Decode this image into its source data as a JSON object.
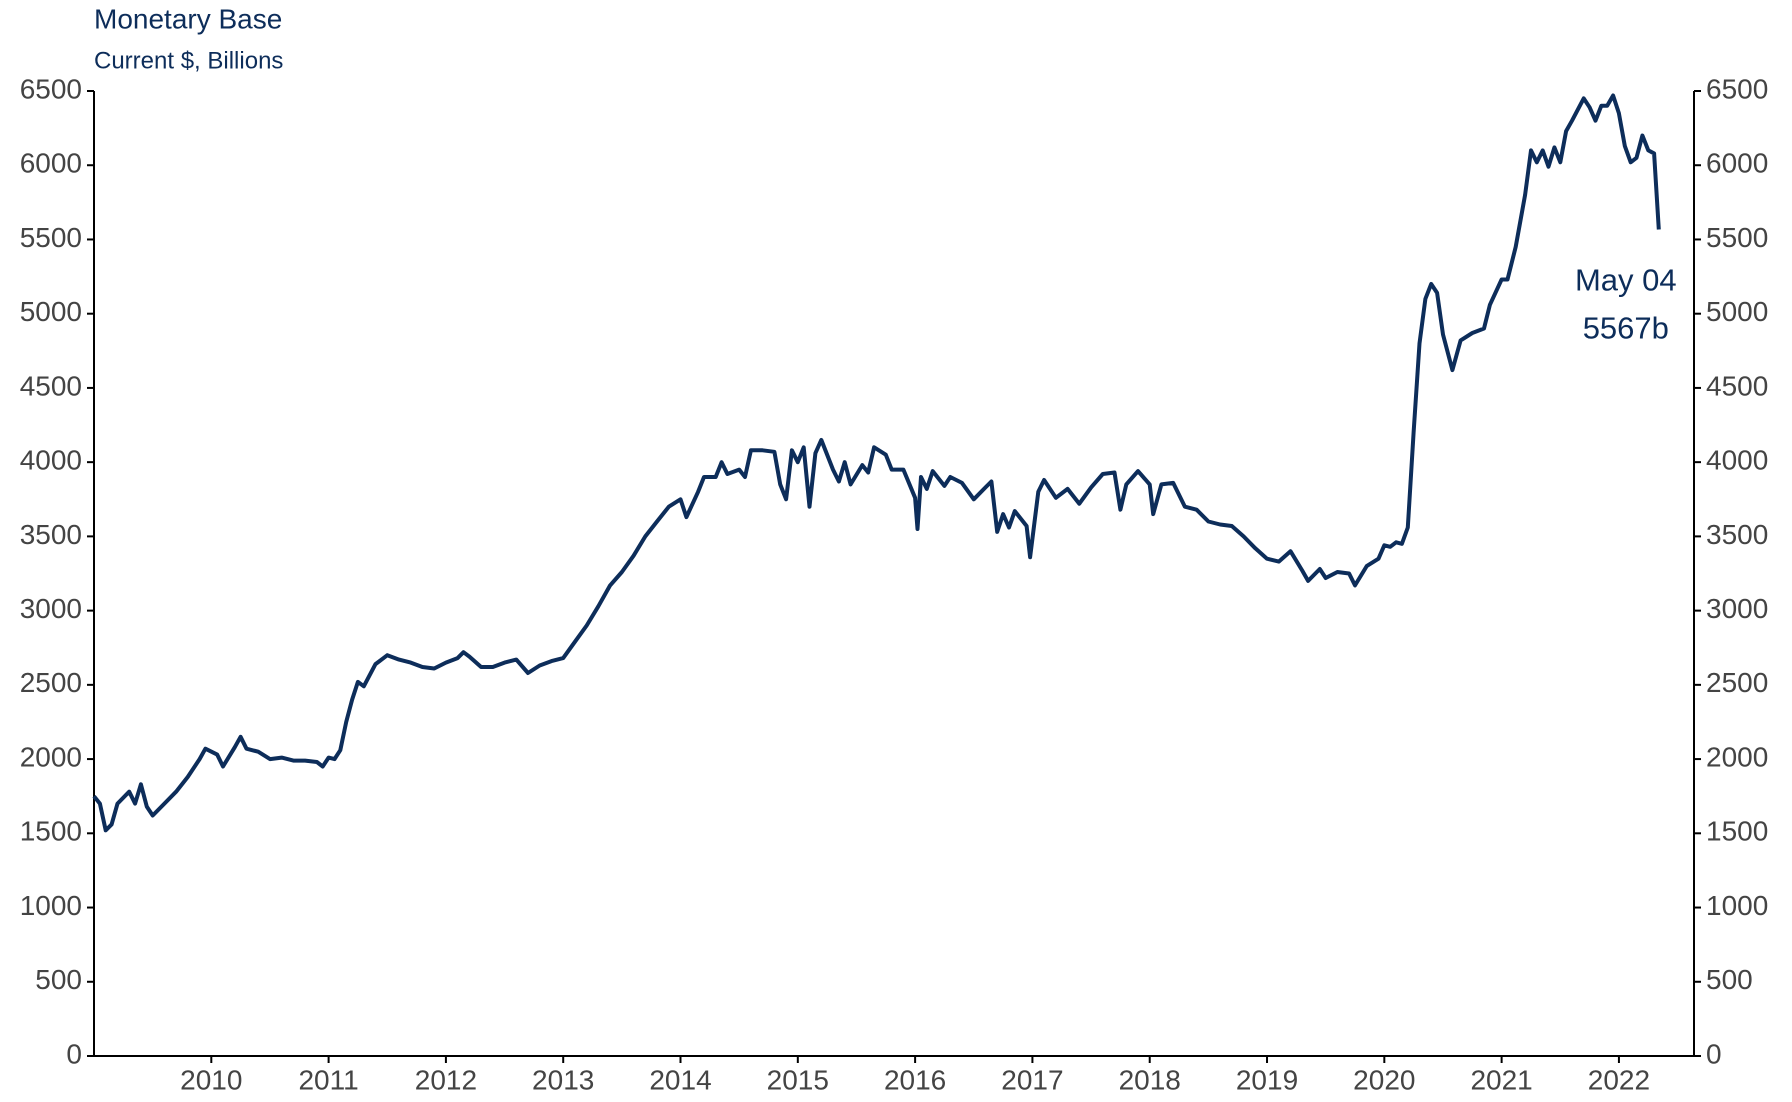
{
  "chart_data": {
    "type": "line",
    "title": "Monetary Base",
    "subtitle": "Current $, Billions",
    "x": [
      2009.0,
      2009.05,
      2009.1,
      2009.15,
      2009.2,
      2009.3,
      2009.35,
      2009.4,
      2009.45,
      2009.5,
      2009.6,
      2009.7,
      2009.8,
      2009.9,
      2009.95,
      2010.05,
      2010.1,
      2010.2,
      2010.25,
      2010.3,
      2010.4,
      2010.5,
      2010.6,
      2010.7,
      2010.8,
      2010.9,
      2010.95,
      2011.0,
      2011.05,
      2011.1,
      2011.15,
      2011.2,
      2011.25,
      2011.3,
      2011.4,
      2011.5,
      2011.6,
      2011.7,
      2011.8,
      2011.9,
      2012.0,
      2012.1,
      2012.15,
      2012.2,
      2012.3,
      2012.4,
      2012.5,
      2012.6,
      2012.7,
      2012.8,
      2012.9,
      2013.0,
      2013.1,
      2013.2,
      2013.3,
      2013.4,
      2013.5,
      2013.6,
      2013.7,
      2013.8,
      2013.9,
      2014.0,
      2014.05,
      2014.15,
      2014.2,
      2014.3,
      2014.35,
      2014.4,
      2014.5,
      2014.55,
      2014.6,
      2014.7,
      2014.8,
      2014.85,
      2014.9,
      2014.95,
      2015.0,
      2015.05,
      2015.1,
      2015.15,
      2015.2,
      2015.3,
      2015.35,
      2015.4,
      2015.45,
      2015.55,
      2015.6,
      2015.65,
      2015.75,
      2015.8,
      2015.9,
      2016.0,
      2016.02,
      2016.05,
      2016.1,
      2016.15,
      2016.25,
      2016.3,
      2016.4,
      2016.5,
      2016.6,
      2016.65,
      2016.7,
      2016.75,
      2016.8,
      2016.85,
      2016.95,
      2016.98,
      2017.05,
      2017.1,
      2017.2,
      2017.3,
      2017.4,
      2017.5,
      2017.6,
      2017.7,
      2017.75,
      2017.8,
      2017.9,
      2018.0,
      2018.03,
      2018.1,
      2018.2,
      2018.3,
      2018.4,
      2018.5,
      2018.6,
      2018.7,
      2018.8,
      2018.9,
      2019.0,
      2019.1,
      2019.2,
      2019.3,
      2019.35,
      2019.45,
      2019.5,
      2019.6,
      2019.7,
      2019.75,
      2019.85,
      2019.95,
      2020.0,
      2020.05,
      2020.1,
      2020.15,
      2020.2,
      2020.25,
      2020.3,
      2020.35,
      2020.4,
      2020.45,
      2020.5,
      2020.58,
      2020.65,
      2020.75,
      2020.85,
      2020.9,
      2021.0,
      2021.05,
      2021.12,
      2021.2,
      2021.25,
      2021.3,
      2021.35,
      2021.4,
      2021.45,
      2021.5,
      2021.55,
      2021.6,
      2021.7,
      2021.75,
      2021.8,
      2021.85,
      2021.9,
      2021.95,
      2022.0,
      2022.05,
      2022.1,
      2022.15,
      2022.2,
      2022.25,
      2022.3,
      2022.34
    ],
    "series": [
      {
        "color": "#0d2d5a",
        "values": [
          1750,
          1700,
          1520,
          1560,
          1700,
          1780,
          1700,
          1830,
          1680,
          1620,
          1700,
          1780,
          1880,
          2000,
          2070,
          2030,
          1950,
          2080,
          2150,
          2070,
          2050,
          2000,
          2010,
          1990,
          1990,
          1980,
          1950,
          2010,
          2000,
          2060,
          2250,
          2400,
          2520,
          2490,
          2640,
          2700,
          2670,
          2650,
          2620,
          2610,
          2650,
          2680,
          2720,
          2690,
          2620,
          2620,
          2650,
          2670,
          2580,
          2630,
          2660,
          2680,
          2790,
          2900,
          3030,
          3170,
          3260,
          3370,
          3500,
          3600,
          3700,
          3750,
          3630,
          3800,
          3900,
          3900,
          4000,
          3920,
          3950,
          3900,
          4080,
          4080,
          4070,
          3850,
          3750,
          4080,
          4000,
          4100,
          3700,
          4060,
          4150,
          3950,
          3870,
          4000,
          3850,
          3980,
          3930,
          4100,
          4050,
          3950,
          3950,
          3760,
          3550,
          3900,
          3820,
          3940,
          3840,
          3900,
          3860,
          3750,
          3830,
          3870,
          3530,
          3650,
          3560,
          3670,
          3570,
          3360,
          3800,
          3880,
          3760,
          3820,
          3720,
          3830,
          3920,
          3930,
          3680,
          3850,
          3940,
          3850,
          3650,
          3850,
          3860,
          3700,
          3680,
          3600,
          3580,
          3570,
          3500,
          3420,
          3350,
          3330,
          3400,
          3270,
          3200,
          3280,
          3220,
          3260,
          3250,
          3170,
          3300,
          3350,
          3440,
          3430,
          3460,
          3450,
          3560,
          4200,
          4800,
          5100,
          5200,
          5140,
          4860,
          4620,
          4820,
          4870,
          4900,
          5060,
          5230,
          5230,
          5450,
          5800,
          6100,
          6020,
          6100,
          5990,
          6120,
          6020,
          6230,
          6300,
          6450,
          6390,
          6300,
          6400,
          6400,
          6470,
          6350,
          6130,
          6020,
          6050,
          6200,
          6100,
          6080,
          5567
        ]
      }
    ],
    "annotations": [
      "May 04",
      "5567b"
    ],
    "xlim": [
      2009.0,
      2022.64
    ],
    "xticks": [
      2010,
      2011,
      2012,
      2013,
      2014,
      2015,
      2016,
      2017,
      2018,
      2019,
      2020,
      2021,
      2022
    ],
    "ylim": [
      0,
      6500
    ],
    "yticks": [
      0,
      500,
      1000,
      1500,
      2000,
      2500,
      3000,
      3500,
      4000,
      4500,
      5000,
      5500,
      6000,
      6500
    ],
    "y2lim": [
      0,
      6500
    ],
    "y2ticks": [
      0,
      500,
      1000,
      1500,
      2000,
      2500,
      3000,
      3500,
      4000,
      4500,
      5000,
      5500,
      6000,
      6500
    ]
  }
}
